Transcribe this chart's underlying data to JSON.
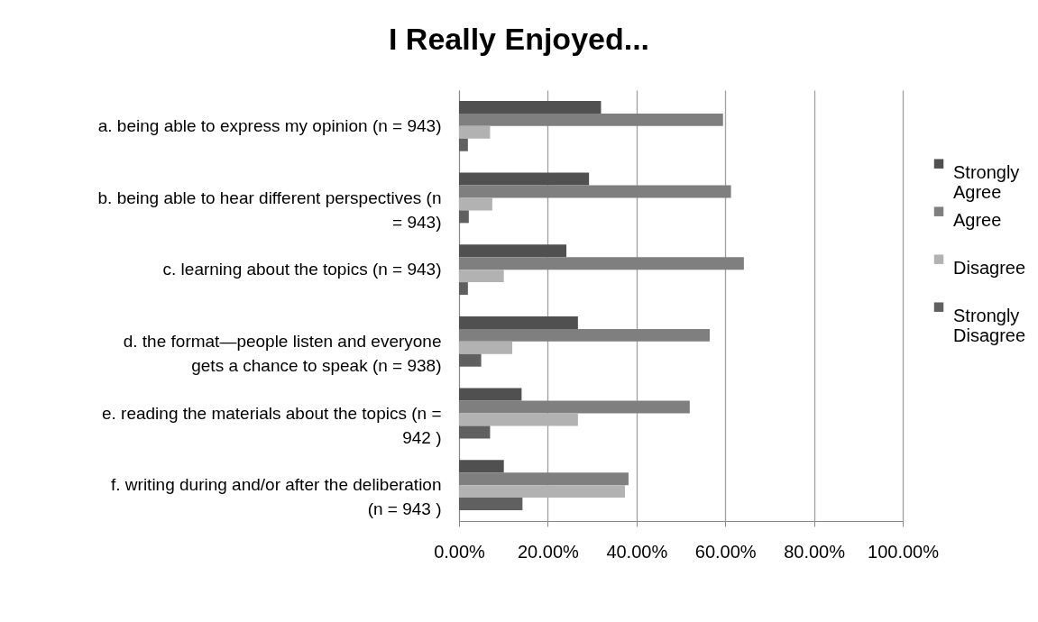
{
  "chart_data": {
    "type": "bar",
    "orientation": "horizontal",
    "title": "I Really Enjoyed...",
    "categories": [
      "a. being able to express my opinion (n = 943)",
      "b. being able to hear different perspectives (n = 943)",
      "c. learning about the topics (n = 943)",
      "d. the format—people listen and everyone gets a chance to speak (n = 938)",
      "e.  reading the materials about the topics (n = 942 )",
      "f.  writing during and/or after the deliberation (n = 943 )"
    ],
    "series": [
      {
        "name": "Strongly Agree",
        "color": "#505050",
        "values": [
          32.0,
          29.3,
          24.2,
          26.8,
          14.1,
          10.1
        ]
      },
      {
        "name": "Agree",
        "color": "#7f7f7f",
        "values": [
          59.5,
          61.3,
          64.2,
          56.5,
          52.0,
          38.2
        ]
      },
      {
        "name": "Disagree",
        "color": "#b2b2b2",
        "values": [
          7.0,
          7.5,
          10.1,
          12.0,
          26.8,
          37.4
        ]
      },
      {
        "name": "Strongly Disagree",
        "color": "#606060",
        "values": [
          2.0,
          2.2,
          2.0,
          5.0,
          7.0,
          14.3
        ]
      }
    ],
    "xlim": [
      0,
      100
    ],
    "xticks": [
      {
        "value": 0,
        "label": "0.00%"
      },
      {
        "value": 20,
        "label": "20.00%"
      },
      {
        "value": 40,
        "label": "40.00%"
      },
      {
        "value": 60,
        "label": "60.00%"
      },
      {
        "value": 80,
        "label": "80.00%"
      },
      {
        "value": 100,
        "label": "100.00%"
      }
    ],
    "grid": "x",
    "legend": "right"
  }
}
